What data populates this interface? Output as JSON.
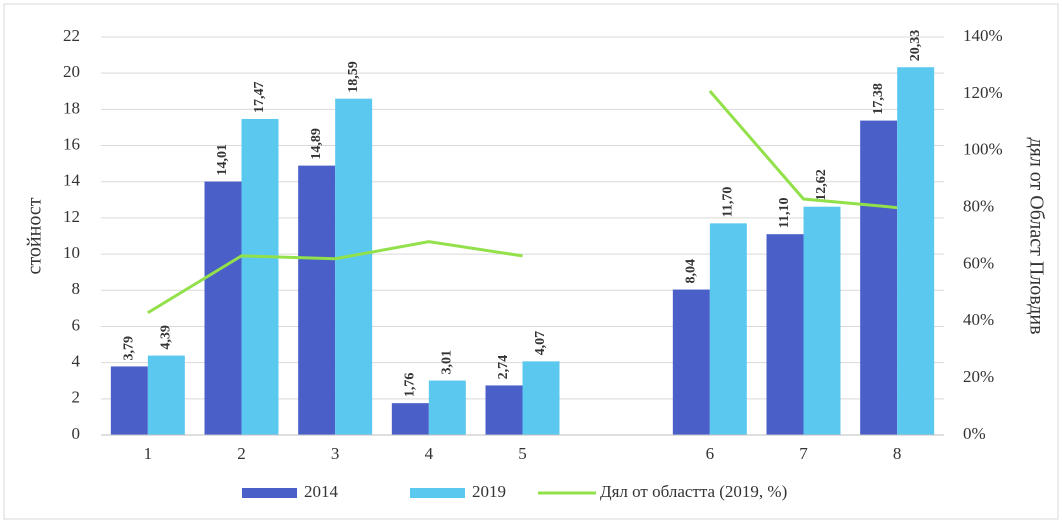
{
  "chart_data": {
    "type": "bar",
    "categories": [
      "1",
      "2",
      "3",
      "4",
      "5",
      null,
      "6",
      "7",
      "8"
    ],
    "series": [
      {
        "name": "2014",
        "color": "#4a5fc8",
        "values": [
          3.79,
          14.01,
          14.89,
          1.76,
          2.74,
          null,
          8.04,
          11.1,
          17.38
        ],
        "value_labels": [
          "3,79",
          "14,01",
          "14,89",
          "1,76",
          "2,74",
          null,
          "8,04",
          "11,10",
          "17,38"
        ]
      },
      {
        "name": "2019",
        "color": "#5bc8f0",
        "values": [
          4.39,
          17.47,
          18.59,
          3.01,
          4.07,
          null,
          11.7,
          12.62,
          20.33
        ],
        "value_labels": [
          "4,39",
          "17,47",
          "18,59",
          "3,01",
          "4,07",
          null,
          "11,70",
          "12,62",
          "20,33"
        ]
      },
      {
        "name": "Дял от областта (2019, %)",
        "color": "#92e04a",
        "type": "line",
        "axis": "y2",
        "values": [
          43,
          63,
          62,
          68,
          63,
          null,
          121,
          83,
          80
        ]
      }
    ],
    "y_label": "стойност",
    "y2_label": "дял от Област Пловдив",
    "ylim": [
      0,
      22
    ],
    "yticks": [
      0,
      2,
      4,
      6,
      8,
      10,
      12,
      14,
      16,
      18,
      20,
      22
    ],
    "y2lim": [
      0,
      140
    ],
    "y2ticks": [
      {
        "value": 0,
        "label": "0%"
      },
      {
        "value": 20,
        "label": "20%"
      },
      {
        "value": 40,
        "label": "40%"
      },
      {
        "value": 60,
        "label": "60%"
      },
      {
        "value": 80,
        "label": "80%"
      },
      {
        "value": 100,
        "label": "100%"
      },
      {
        "value": 120,
        "label": "120%"
      },
      {
        "value": 140,
        "label": "140%"
      }
    ],
    "grid": true
  }
}
